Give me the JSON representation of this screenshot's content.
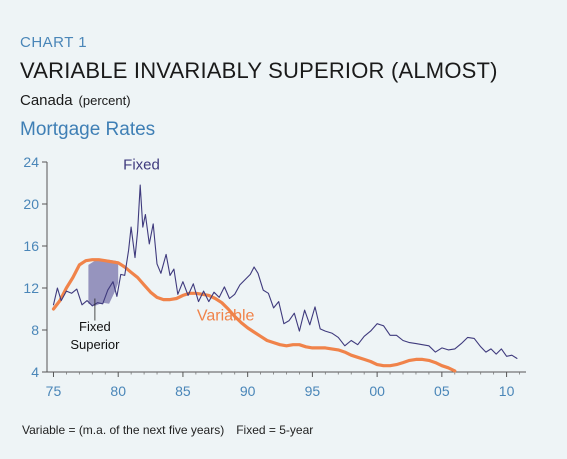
{
  "header": {
    "chart_number": "CHART 1",
    "title": "VARIABLE INVARIABLY SUPERIOR (ALMOST)",
    "subtitle": "Canada",
    "unit": "(percent)",
    "section": "Mortgage Rates"
  },
  "footnote": {
    "variable_def": "Variable = (m.a. of the next five years)",
    "fixed_def": "Fixed = 5-year"
  },
  "colors": {
    "fixed": "#3f3a7d",
    "variable": "#f0834a",
    "superior_fill": "#8c8ab8",
    "axis_text": "#4a86b8",
    "background": "#eef4f6"
  },
  "chart_data": {
    "type": "line",
    "title": "Mortgage Rates",
    "ylim": [
      4,
      24
    ],
    "xlim": [
      74.5,
      111.5
    ],
    "y_ticks": [
      "4",
      "8",
      "12",
      "16",
      "20",
      "24"
    ],
    "y_tick_values": [
      4,
      8,
      12,
      16,
      20,
      24
    ],
    "x_ticks": [
      "75",
      "80",
      "85",
      "90",
      "95",
      "00",
      "05",
      "10"
    ],
    "x_tick_values": [
      75,
      80,
      85,
      90,
      95,
      100,
      105,
      110
    ],
    "grid": false,
    "annotations": {
      "fixed_label": "Fixed",
      "variable_label": "Variable",
      "superior_label_line1": "Fixed",
      "superior_label_line2": "Superior"
    },
    "series": [
      {
        "name": "Fixed",
        "x": [
          75.0,
          75.3,
          75.6,
          76.0,
          76.4,
          76.8,
          77.2,
          77.6,
          78.0,
          78.4,
          78.8,
          79.2,
          79.6,
          79.9,
          80.2,
          80.5,
          80.8,
          81.0,
          81.3,
          81.5,
          81.7,
          81.9,
          82.1,
          82.4,
          82.7,
          83.0,
          83.3,
          83.7,
          84.0,
          84.3,
          84.6,
          85.0,
          85.4,
          85.8,
          86.2,
          86.6,
          87.0,
          87.4,
          87.8,
          88.2,
          88.6,
          89.0,
          89.4,
          89.8,
          90.2,
          90.5,
          90.8,
          91.2,
          91.6,
          92.0,
          92.4,
          92.8,
          93.2,
          93.6,
          94.0,
          94.4,
          94.8,
          95.2,
          95.6,
          96.0,
          96.5,
          97.0,
          97.5,
          98.0,
          98.5,
          99.0,
          99.5,
          100.0,
          100.5,
          101.0,
          101.5,
          102.0,
          102.5,
          103.0,
          103.5,
          104.0,
          104.5,
          105.0,
          105.5,
          106.0,
          106.5,
          107.0,
          107.5,
          108.0,
          108.4,
          108.8,
          109.2,
          109.6,
          110.0,
          110.4,
          110.8
        ],
        "values": [
          10.4,
          12.0,
          10.8,
          11.7,
          11.5,
          11.9,
          10.4,
          10.8,
          10.3,
          10.6,
          10.5,
          11.8,
          12.6,
          11.2,
          13.3,
          13.2,
          15.6,
          17.8,
          14.9,
          17.4,
          21.8,
          17.8,
          19.0,
          16.2,
          18.1,
          14.3,
          13.4,
          15.2,
          13.2,
          13.8,
          11.4,
          12.6,
          11.3,
          12.4,
          10.7,
          11.7,
          10.7,
          11.6,
          11.1,
          12.1,
          11.0,
          11.4,
          12.3,
          12.8,
          13.3,
          14.0,
          13.4,
          11.8,
          11.5,
          10.1,
          10.7,
          8.6,
          8.9,
          9.6,
          7.9,
          9.9,
          8.5,
          10.2,
          8.1,
          7.9,
          7.7,
          7.3,
          6.5,
          7.0,
          6.6,
          7.4,
          7.9,
          8.6,
          8.4,
          7.5,
          7.5,
          7.0,
          6.8,
          6.7,
          6.6,
          6.5,
          5.9,
          6.3,
          6.1,
          6.2,
          6.7,
          7.3,
          7.2,
          6.4,
          5.9,
          6.2,
          5.7,
          6.2,
          5.5,
          5.6,
          5.3
        ]
      },
      {
        "name": "Variable",
        "x": [
          75.0,
          75.5,
          76.0,
          76.5,
          77.0,
          77.5,
          78.0,
          78.5,
          79.0,
          79.5,
          80.0,
          80.5,
          81.0,
          81.5,
          82.0,
          82.5,
          83.0,
          83.5,
          84.0,
          84.5,
          85.0,
          85.5,
          86.0,
          86.5,
          87.0,
          87.5,
          88.0,
          88.5,
          89.0,
          89.5,
          90.0,
          90.5,
          91.0,
          91.5,
          92.0,
          92.5,
          93.0,
          93.5,
          94.0,
          94.5,
          95.0,
          95.5,
          96.0,
          96.5,
          97.0,
          97.5,
          98.0,
          98.5,
          99.0,
          99.5,
          100.0,
          100.5,
          101.0,
          101.5,
          102.0,
          102.5,
          103.0,
          103.5,
          104.0,
          104.5,
          105.0,
          105.5,
          106.0
        ],
        "values": [
          10.0,
          10.8,
          12.0,
          13.0,
          14.2,
          14.6,
          14.7,
          14.7,
          14.6,
          14.5,
          14.4,
          14.0,
          13.5,
          13.0,
          12.3,
          11.6,
          11.1,
          10.9,
          10.9,
          11.0,
          11.3,
          11.5,
          11.5,
          11.4,
          11.3,
          11.0,
          10.6,
          10.0,
          9.3,
          8.7,
          8.2,
          7.8,
          7.4,
          7.0,
          6.8,
          6.6,
          6.5,
          6.6,
          6.6,
          6.4,
          6.3,
          6.3,
          6.3,
          6.2,
          6.1,
          5.9,
          5.6,
          5.4,
          5.2,
          5.0,
          4.7,
          4.6,
          4.6,
          4.7,
          4.9,
          5.1,
          5.2,
          5.2,
          5.1,
          4.9,
          4.6,
          4.4,
          4.1
        ]
      }
    ],
    "fixed_superior_region": {
      "x": [
        77.7,
        78.2,
        78.8,
        79.3,
        79.8,
        80.0
      ],
      "upper": [
        14.2,
        14.6,
        14.7,
        14.7,
        14.6,
        14.4
      ],
      "lower": [
        10.5,
        10.3,
        10.6,
        10.5,
        11.8,
        12.5
      ]
    }
  }
}
